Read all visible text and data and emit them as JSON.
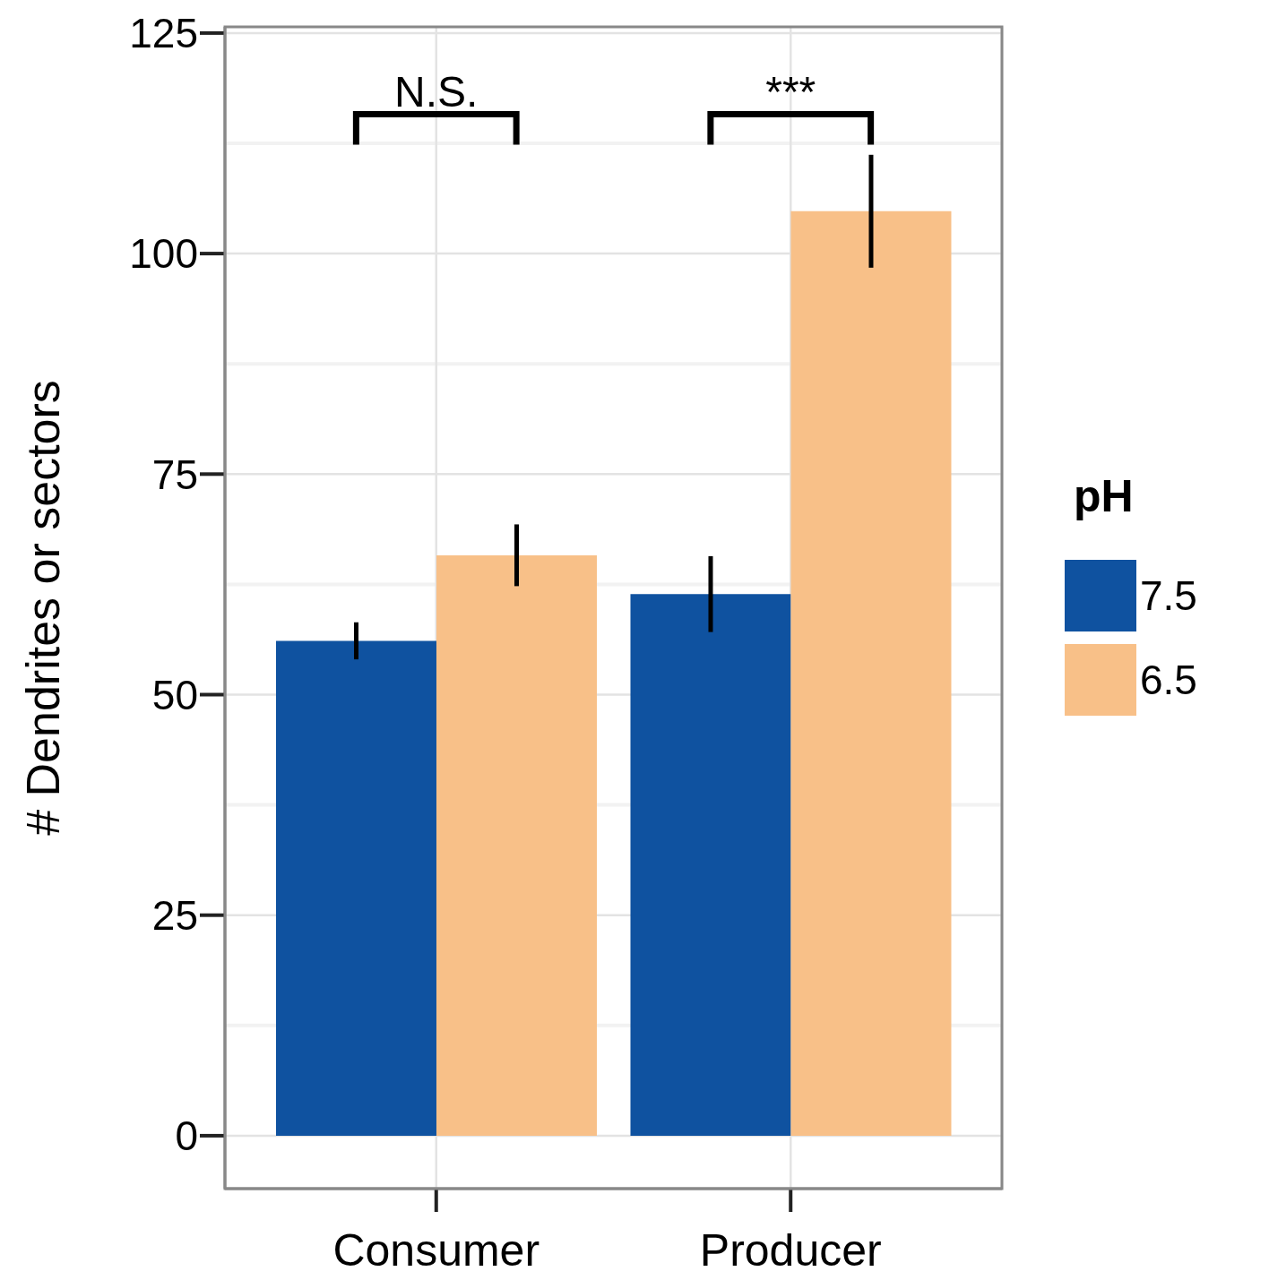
{
  "chart_data": {
    "type": "bar",
    "ylabel": "# Dendrites or sectors",
    "legend_title": "pH",
    "categories": [
      "Consumer",
      "Producer"
    ],
    "series": [
      {
        "name": "7.5",
        "color": "#0f52a0",
        "values": [
          56.1,
          61.4
        ],
        "errors": [
          2.1,
          4.3
        ]
      },
      {
        "name": "6.5",
        "color": "#f8c088",
        "values": [
          65.8,
          104.8
        ],
        "errors": [
          3.5,
          6.4
        ]
      }
    ],
    "ylim": [
      -6,
      125.7
    ],
    "yticks": [
      0,
      25,
      50,
      75,
      100,
      125
    ],
    "grid": true,
    "legend": "right",
    "annotations": [
      "N.S.",
      "***"
    ]
  }
}
